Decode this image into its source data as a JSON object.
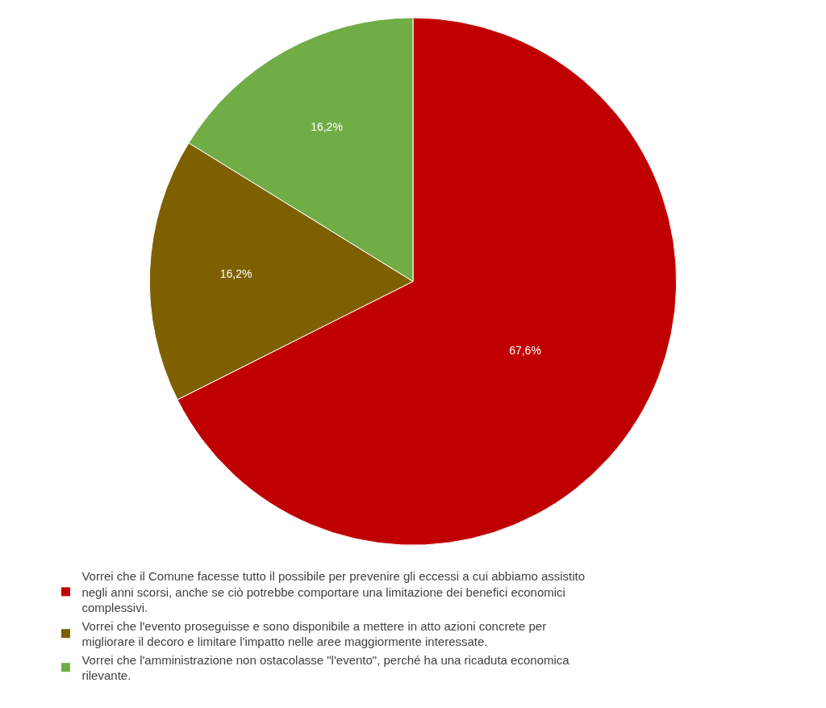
{
  "chart_data": {
    "type": "pie",
    "categories": [
      "Vorrei che il Comune facesse tutto il possibile per prevenire gli eccessi a cui abbiamo assistito negli anni scorsi, anche se ciò potrebbe comportare una limitazione dei benefici economici complessivi.",
      "Vorrei che l'evento proseguisse e sono disponibile a mettere in atto azioni concrete per migliorare il decoro e limitare l'impatto nelle aree maggiormente interessate.",
      "Vorrei che l'amministrazione non ostacolasse \"l'evento\", perché ha una ricaduta economica rilevante."
    ],
    "values": [
      67.6,
      16.2,
      16.2
    ],
    "value_labels": [
      "67,6%",
      "16,2%",
      "16,2%"
    ],
    "colors": [
      "#c00000",
      "#7f6000",
      "#70ad47"
    ],
    "legend": "bottom"
  }
}
